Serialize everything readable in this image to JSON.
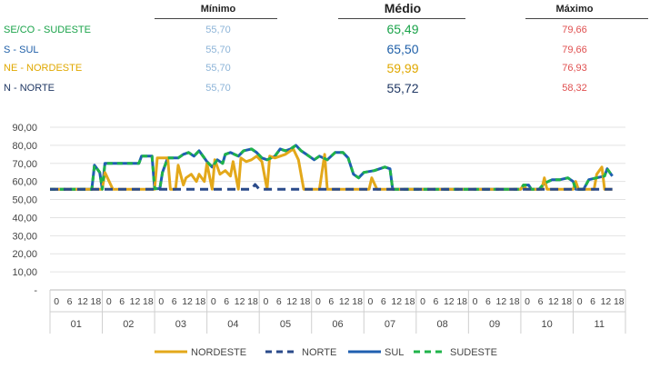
{
  "summary": {
    "headers": {
      "min": "Mínimo",
      "avg": "Médio",
      "max": "Máximo"
    },
    "rows": [
      {
        "label": "SE/CO - SUDESTE",
        "min": "55,70",
        "avg": "65,49",
        "max": "79,66",
        "color": "#1aa34a"
      },
      {
        "label": "S - SUL",
        "min": "55,70",
        "avg": "65,50",
        "max": "79,66",
        "color": "#1f5fa8"
      },
      {
        "label": "NE - NORDESTE",
        "min": "55,70",
        "avg": "59,99",
        "max": "76,93",
        "color": "#e0a800"
      },
      {
        "label": "N - NORTE",
        "min": "55,70",
        "avg": "55,72",
        "max": "58,32",
        "color": "#203864"
      }
    ]
  },
  "chart_data": {
    "type": "line",
    "ylim": [
      0,
      90
    ],
    "y_ticks": [
      "-",
      "10,00",
      "20,00",
      "30,00",
      "40,00",
      "50,00",
      "60,00",
      "70,00",
      "80,00",
      "90,00"
    ],
    "grid": true,
    "legend_position": "bottom",
    "x_hour_ticks": [
      "0",
      "6",
      "12",
      "18"
    ],
    "x_day_groups": [
      "01",
      "02",
      "03",
      "04",
      "05",
      "06",
      "07",
      "08",
      "09",
      "10",
      "11"
    ],
    "series": [
      {
        "name": "NORDESTE",
        "color": "#e3a81a",
        "dash": "solid",
        "points": [
          [
            0,
            55.7
          ],
          [
            1.0,
            55.7
          ],
          [
            1.05,
            65
          ],
          [
            1.2,
            55.7
          ],
          [
            2.0,
            55.7
          ],
          [
            2.05,
            73
          ],
          [
            2.25,
            73
          ],
          [
            2.3,
            55.7
          ],
          [
            2.4,
            55.7
          ],
          [
            2.45,
            69
          ],
          [
            2.55,
            58
          ],
          [
            2.6,
            62
          ],
          [
            2.7,
            64
          ],
          [
            2.8,
            60
          ],
          [
            2.85,
            64
          ],
          [
            2.95,
            60
          ],
          [
            3.0,
            70
          ],
          [
            3.1,
            55.7
          ],
          [
            3.15,
            72
          ],
          [
            3.25,
            64
          ],
          [
            3.35,
            66
          ],
          [
            3.45,
            63
          ],
          [
            3.5,
            71
          ],
          [
            3.6,
            55.7
          ],
          [
            3.65,
            73
          ],
          [
            3.75,
            71
          ],
          [
            3.85,
            72
          ],
          [
            3.95,
            74
          ],
          [
            4.05,
            71
          ],
          [
            4.15,
            55.7
          ],
          [
            4.2,
            74
          ],
          [
            4.3,
            73
          ],
          [
            4.4,
            74
          ],
          [
            4.5,
            75
          ],
          [
            4.6,
            77
          ],
          [
            4.65,
            78
          ],
          [
            4.75,
            72
          ],
          [
            4.85,
            55.7
          ],
          [
            5.15,
            55.7
          ],
          [
            5.25,
            75
          ],
          [
            5.3,
            55.7
          ],
          [
            6.1,
            55.7
          ],
          [
            6.15,
            62
          ],
          [
            6.25,
            55.7
          ],
          [
            8.5,
            55.7
          ],
          [
            9.0,
            55.7
          ],
          [
            9.05,
            58
          ],
          [
            9.1,
            55.7
          ],
          [
            9.4,
            55.7
          ],
          [
            9.45,
            62
          ],
          [
            9.5,
            55.7
          ],
          [
            10.0,
            55.7
          ],
          [
            10.05,
            60
          ],
          [
            10.1,
            55.7
          ],
          [
            10.4,
            55.7
          ],
          [
            10.45,
            64
          ],
          [
            10.55,
            68
          ],
          [
            10.6,
            55.7
          ],
          [
            10.75,
            55.7
          ]
        ]
      },
      {
        "name": "NORTE",
        "color": "#2a4a8a",
        "dash": "dash",
        "points": [
          [
            0,
            55.7
          ],
          [
            3.85,
            55.7
          ],
          [
            3.92,
            58.3
          ],
          [
            4.0,
            55.7
          ],
          [
            10.75,
            55.7
          ]
        ]
      },
      {
        "name": "SUL",
        "color": "#1f5fb0",
        "dash": "solid",
        "points": [
          [
            0,
            55.7
          ],
          [
            0.8,
            55.7
          ],
          [
            0.85,
            69
          ],
          [
            0.95,
            65
          ],
          [
            1.0,
            55.7
          ],
          [
            1.05,
            70
          ],
          [
            1.7,
            70
          ],
          [
            1.75,
            74
          ],
          [
            1.95,
            74
          ],
          [
            2.0,
            56
          ],
          [
            2.1,
            56
          ],
          [
            2.15,
            65
          ],
          [
            2.25,
            73
          ],
          [
            2.45,
            73
          ],
          [
            2.55,
            75
          ],
          [
            2.65,
            76
          ],
          [
            2.75,
            74
          ],
          [
            2.85,
            77
          ],
          [
            2.95,
            73
          ],
          [
            3.0,
            71
          ],
          [
            3.1,
            68
          ],
          [
            3.2,
            72
          ],
          [
            3.3,
            70
          ],
          [
            3.35,
            75
          ],
          [
            3.45,
            76
          ],
          [
            3.6,
            74
          ],
          [
            3.7,
            77
          ],
          [
            3.85,
            78
          ],
          [
            3.95,
            76
          ],
          [
            4.05,
            73
          ],
          [
            4.15,
            72
          ],
          [
            4.3,
            74
          ],
          [
            4.4,
            78
          ],
          [
            4.5,
            77
          ],
          [
            4.6,
            78
          ],
          [
            4.7,
            80
          ],
          [
            4.8,
            77
          ],
          [
            4.9,
            75
          ],
          [
            5.05,
            72
          ],
          [
            5.15,
            74
          ],
          [
            5.3,
            72
          ],
          [
            5.45,
            76
          ],
          [
            5.6,
            76
          ],
          [
            5.7,
            73
          ],
          [
            5.8,
            64
          ],
          [
            5.9,
            62
          ],
          [
            6.0,
            65
          ],
          [
            6.2,
            66
          ],
          [
            6.4,
            68
          ],
          [
            6.5,
            67
          ],
          [
            6.55,
            55.7
          ],
          [
            9.0,
            55.7
          ],
          [
            9.05,
            58
          ],
          [
            9.15,
            58
          ],
          [
            9.2,
            55.7
          ],
          [
            9.35,
            55.7
          ],
          [
            9.45,
            59
          ],
          [
            9.6,
            61
          ],
          [
            9.75,
            61
          ],
          [
            9.9,
            62
          ],
          [
            10.0,
            60
          ],
          [
            10.05,
            55.7
          ],
          [
            10.2,
            55.7
          ],
          [
            10.3,
            61
          ],
          [
            10.45,
            62
          ],
          [
            10.6,
            63
          ],
          [
            10.65,
            67
          ],
          [
            10.75,
            63
          ]
        ]
      },
      {
        "name": "SUDESTE",
        "color": "#1fb34a",
        "dash": "dash",
        "points": [
          [
            0,
            55.7
          ],
          [
            0.8,
            55.7
          ],
          [
            0.85,
            69
          ],
          [
            0.95,
            65
          ],
          [
            1.0,
            55.7
          ],
          [
            1.05,
            70
          ],
          [
            1.7,
            70
          ],
          [
            1.75,
            74
          ],
          [
            1.95,
            74
          ],
          [
            2.0,
            56
          ],
          [
            2.1,
            56
          ],
          [
            2.15,
            65
          ],
          [
            2.25,
            73
          ],
          [
            2.45,
            73
          ],
          [
            2.55,
            75
          ],
          [
            2.65,
            76
          ],
          [
            2.75,
            74
          ],
          [
            2.85,
            77
          ],
          [
            2.95,
            73
          ],
          [
            3.0,
            71
          ],
          [
            3.1,
            68
          ],
          [
            3.2,
            72
          ],
          [
            3.3,
            70
          ],
          [
            3.35,
            75
          ],
          [
            3.45,
            76
          ],
          [
            3.6,
            74
          ],
          [
            3.7,
            77
          ],
          [
            3.85,
            78
          ],
          [
            3.95,
            76
          ],
          [
            4.05,
            73
          ],
          [
            4.15,
            72
          ],
          [
            4.3,
            74
          ],
          [
            4.4,
            78
          ],
          [
            4.5,
            77
          ],
          [
            4.6,
            78
          ],
          [
            4.7,
            80
          ],
          [
            4.8,
            77
          ],
          [
            4.9,
            75
          ],
          [
            5.05,
            72
          ],
          [
            5.15,
            74
          ],
          [
            5.3,
            72
          ],
          [
            5.45,
            76
          ],
          [
            5.6,
            76
          ],
          [
            5.7,
            73
          ],
          [
            5.8,
            64
          ],
          [
            5.9,
            62
          ],
          [
            6.0,
            65
          ],
          [
            6.2,
            66
          ],
          [
            6.4,
            68
          ],
          [
            6.5,
            67
          ],
          [
            6.55,
            55.7
          ],
          [
            9.0,
            55.7
          ],
          [
            9.05,
            58
          ],
          [
            9.15,
            58
          ],
          [
            9.2,
            55.7
          ],
          [
            9.35,
            55.7
          ],
          [
            9.45,
            59
          ],
          [
            9.6,
            61
          ],
          [
            9.75,
            61
          ],
          [
            9.9,
            62
          ],
          [
            10.0,
            60
          ],
          [
            10.05,
            55.7
          ],
          [
            10.2,
            55.7
          ],
          [
            10.3,
            61
          ],
          [
            10.45,
            62
          ],
          [
            10.6,
            63
          ],
          [
            10.65,
            67
          ],
          [
            10.75,
            63
          ]
        ]
      }
    ]
  }
}
